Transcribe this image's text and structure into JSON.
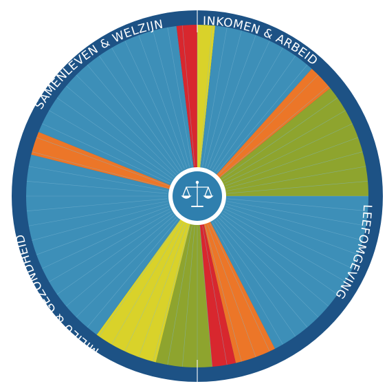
{
  "colors": {
    "ring": "#1d5285",
    "base": "#3d8fb8",
    "divider": "#7fb8d4",
    "hub_bg": "#2f7fae",
    "hub_ring": "#ffffff",
    "accent_red": "#d8272e",
    "accent_yellow": "#d9d22a",
    "accent_orange": "#ec7628",
    "accent_olive": "#8ea42e"
  },
  "hub": {
    "icon": "scales-of-justice-icon"
  },
  "quadrants": [
    {
      "label": "INKOMEN & ARBEID"
    },
    {
      "label": "LEEFOMGEVING"
    },
    {
      "label": "MILIEU & GEZONDHEID"
    },
    {
      "label": "SAMENLEVEN & WELZIJN"
    }
  ],
  "segments": [
    {
      "from": 0,
      "to": 6,
      "color": "accent_yellow"
    },
    {
      "from": 6,
      "to": 42,
      "color": "base"
    },
    {
      "from": 42,
      "to": 51,
      "color": "accent_orange"
    },
    {
      "from": 51,
      "to": 90,
      "color": "accent_olive"
    },
    {
      "from": 90,
      "to": 153,
      "color": "base"
    },
    {
      "from": 153,
      "to": 167,
      "color": "accent_orange"
    },
    {
      "from": 167,
      "to": 175,
      "color": "accent_red"
    },
    {
      "from": 175,
      "to": 194,
      "color": "accent_olive"
    },
    {
      "from": 194,
      "to": 216,
      "color": "accent_yellow"
    },
    {
      "from": 216,
      "to": 284,
      "color": "base"
    },
    {
      "from": 284,
      "to": 292,
      "color": "accent_orange"
    },
    {
      "from": 292,
      "to": 353,
      "color": "base"
    },
    {
      "from": 353,
      "to": 360,
      "color": "accent_red"
    }
  ],
  "slice_count": 72
}
